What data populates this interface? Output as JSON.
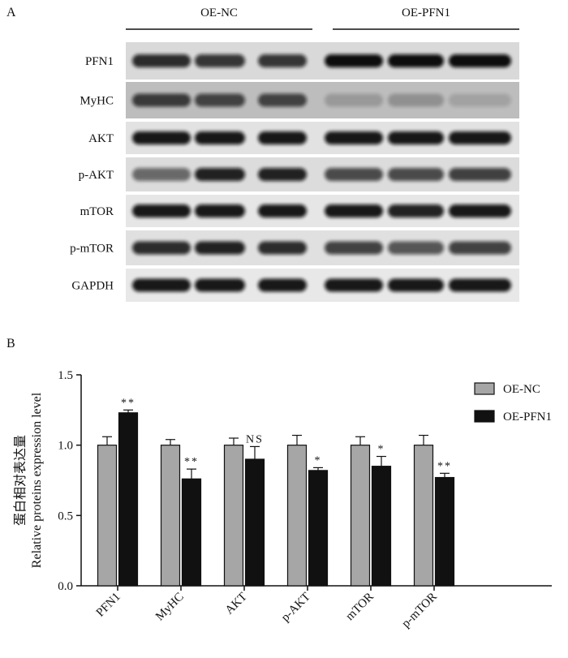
{
  "panel_a": {
    "label": "A",
    "groups": [
      "OE-NC",
      "OE-PFN1"
    ],
    "rows": [
      "PFN1",
      "MyHC",
      "AKT",
      "p-AKT",
      "mTOR",
      "p-mTOR",
      "GAPDH"
    ]
  },
  "chart_data": {
    "type": "bar",
    "panel_label": "B",
    "ylabel": [
      "蛋白相对表达量",
      "Relative proteins expression level"
    ],
    "categories": [
      "PFN1",
      "MyHC",
      "AKT",
      "p-AKT",
      "mTOR",
      "p-mTOR"
    ],
    "series": [
      {
        "name": "OE-NC",
        "color": "#a6a6a6",
        "values": [
          1.0,
          1.0,
          1.0,
          1.0,
          1.0,
          1.0
        ],
        "errors": [
          0.06,
          0.04,
          0.05,
          0.07,
          0.06,
          0.07
        ]
      },
      {
        "name": "OE-PFN1",
        "color": "#111111",
        "values": [
          1.23,
          0.76,
          0.9,
          0.82,
          0.85,
          0.77
        ],
        "errors": [
          0.02,
          0.07,
          0.09,
          0.02,
          0.07,
          0.03
        ]
      }
    ],
    "annotations": [
      "**",
      "**",
      "NS",
      "*",
      "*",
      "**"
    ],
    "ylim": [
      0,
      1.5
    ],
    "yticks": [
      {
        "value": 0,
        "label": "0.0"
      },
      0.5,
      {
        "value": 1,
        "label": "1.0"
      },
      1.5
    ],
    "legend": "upper right"
  }
}
